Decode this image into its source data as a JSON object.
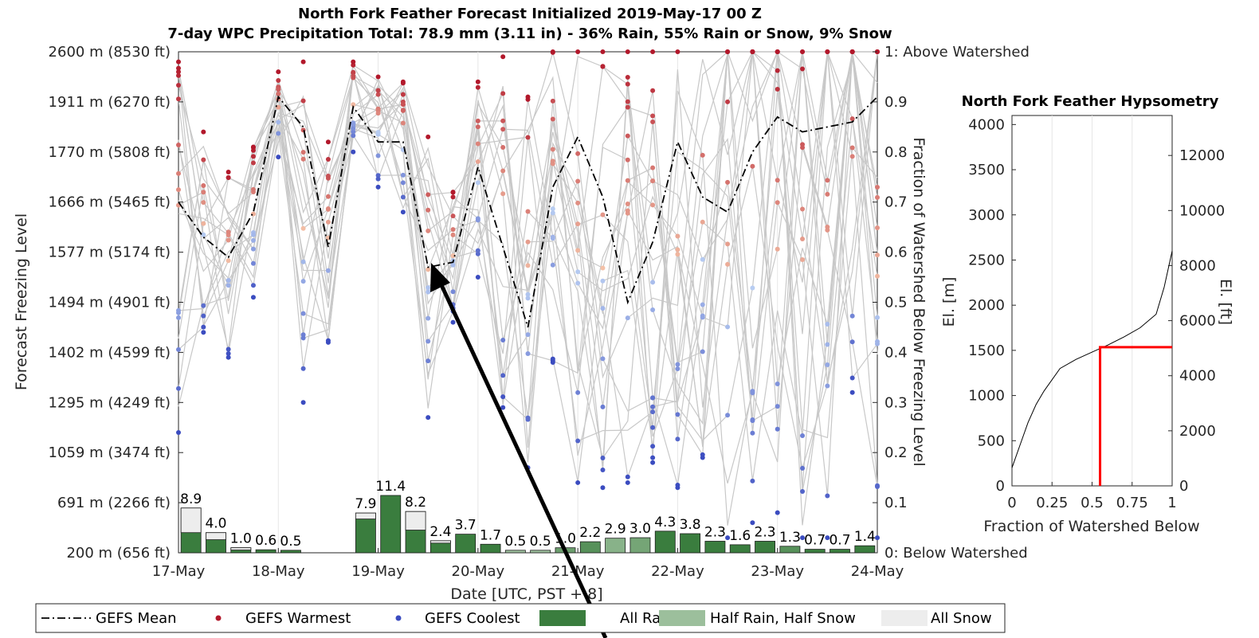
{
  "chart_data": [
    {
      "type": "line",
      "title": "North Fork Feather Forecast Initialized 2019-May-17 00 Z",
      "subtitle": "7-day WPC Precipitation Total: 78.9 mm (3.11 in) - 36% Rain, 55% Rain or Snow, 9% Snow",
      "xlabel": "Date [UTC, PST + 8]",
      "ylabel": "Forecast Freezing Level",
      "ylabel_right": "Fraction of Watershed Below Freezing Level",
      "x_ticks": [
        "17-May",
        "18-May",
        "19-May",
        "20-May",
        "21-May",
        "22-May",
        "23-May",
        "24-May"
      ],
      "y_ticks_left": [
        "200 m (656 ft)",
        "691 m (2266 ft)",
        "1059 m (3474 ft)",
        "1295 m (4249 ft)",
        "1402 m (4599 ft)",
        "1494 m (4901 ft)",
        "1577 m (5174 ft)",
        "1666 m (5465 ft)",
        "1770 m (5808 ft)",
        "1911 m (6270 ft)",
        "2600 m (8530 ft)"
      ],
      "y_ticks_right": [
        "0: Below Watershed",
        "0.1",
        "0.2",
        "0.3",
        "0.4",
        "0.5",
        "0.6",
        "0.7",
        "0.8",
        "0.9",
        "1: Above Watershed"
      ],
      "ylim_fraction": [
        0,
        1
      ],
      "grid": "x",
      "series": [
        {
          "name": "GEFS Mean",
          "style": "dash-dot",
          "color": "#000000",
          "x": [
            0,
            0.25,
            0.5,
            0.75,
            1.0,
            1.25,
            1.5,
            1.75,
            2.0,
            2.25,
            2.5,
            2.75,
            3.0,
            3.25,
            3.5,
            3.75,
            4.0,
            4.25,
            4.5,
            4.75,
            5.0,
            5.25,
            5.5,
            5.75,
            6.0,
            6.25,
            6.5,
            6.75,
            7.0
          ],
          "y": [
            0.7,
            0.63,
            0.59,
            0.68,
            0.91,
            0.85,
            0.61,
            0.89,
            0.82,
            0.82,
            0.57,
            0.58,
            0.77,
            0.61,
            0.45,
            0.73,
            0.83,
            0.71,
            0.5,
            0.62,
            0.82,
            0.71,
            0.68,
            0.8,
            0.87,
            0.84,
            0.85,
            0.86,
            0.91
          ]
        },
        {
          "name": "GEFS Warmest",
          "style": "markers",
          "color": "#b2182b",
          "x": [
            0,
            0.25,
            0.5,
            0.75,
            1.0,
            1.25,
            1.5,
            1.75,
            2.0,
            2.25,
            2.5,
            2.75,
            3.0,
            3.25,
            3.5,
            3.75,
            4.0,
            4.25,
            4.5,
            4.75,
            5.0
          ],
          "y": [
            0.98,
            0.84,
            0.76,
            0.81,
            0.96,
            0.98,
            0.82,
            0.98,
            0.95,
            0.94,
            0.83,
            0.72,
            0.94,
            0.99,
            0.91,
            1.0,
            1.0,
            1.0,
            1.0,
            1.0,
            1.0
          ]
        },
        {
          "name": "GEFS Coolest",
          "style": "markers",
          "color": "#3b4cc0",
          "x": [
            0,
            0.25,
            0.5,
            0.75,
            1.0,
            1.25,
            1.5,
            1.75,
            2.0,
            2.25,
            2.5,
            2.75,
            3.0,
            3.25,
            3.5,
            3.75,
            4.0,
            4.25,
            4.5,
            4.75,
            5.0,
            5.25,
            5.5,
            5.75,
            6.0,
            6.25,
            6.5,
            6.75,
            7.0
          ],
          "y": [
            0.24,
            0.44,
            0.39,
            0.51,
            0.79,
            0.3,
            0.42,
            0.8,
            0.73,
            0.68,
            0.27,
            0.46,
            0.55,
            0.29,
            0.17,
            0.38,
            0.14,
            0.13,
            0.14,
            0.18,
            0.13,
            0.19,
            0.03,
            0.06,
            0.08,
            0.03,
            0.03,
            0.32,
            0.03
          ]
        }
      ]
    },
    {
      "type": "bar",
      "name": "WPC Precipitation (mm)",
      "categories": [
        "17-May 00Z",
        "17-May 06Z",
        "17-May 12Z",
        "17-May 18Z",
        "18-May 00Z",
        "18-May 06Z",
        "18-May 12Z",
        "18-May 18Z",
        "19-May 00Z",
        "19-May 06Z",
        "19-May 12Z",
        "19-May 18Z",
        "20-May 00Z",
        "20-May 06Z",
        "20-May 12Z",
        "20-May 18Z",
        "21-May 00Z",
        "21-May 06Z",
        "21-May 12Z",
        "21-May 18Z",
        "22-May 00Z",
        "22-May 06Z",
        "22-May 12Z",
        "22-May 18Z",
        "23-May 00Z",
        "23-May 06Z",
        "23-May 12Z",
        "23-May 18Z"
      ],
      "values": [
        8.9,
        4.0,
        1.0,
        0.6,
        0.5,
        0.0,
        0.0,
        7.9,
        11.4,
        8.2,
        2.4,
        3.7,
        1.7,
        0.5,
        0.5,
        1.0,
        2.2,
        2.9,
        3.0,
        4.3,
        3.8,
        2.3,
        1.6,
        2.3,
        1.3,
        0.7,
        0.7,
        1.4
      ],
      "labels": [
        "8.9",
        "4.0",
        "1.0",
        "0.6",
        "0.5",
        "",
        "",
        "7.9",
        "11.4",
        "8.2",
        "2.4",
        "3.7",
        "1.7",
        "0.5",
        "0.5",
        "1.0",
        "2.2",
        "2.9",
        "3.0",
        "4.3",
        "3.8",
        "2.3",
        "1.6",
        "2.3",
        "1.3",
        "0.7",
        "0.7",
        "1.4"
      ],
      "snow_fraction": [
        0.55,
        0.35,
        0.45,
        0.0,
        0.0,
        0.0,
        0.0,
        0.15,
        0.0,
        0.45,
        0.2,
        0.0,
        0.0,
        0.0,
        0.0,
        0.0,
        0.0,
        0.0,
        0.0,
        0.0,
        0.0,
        0.0,
        0.0,
        0.0,
        0.0,
        0.0,
        0.0,
        0.0
      ],
      "mixed_fraction": [
        0.0,
        0.0,
        0.0,
        0.0,
        0.0,
        0.0,
        0.0,
        0.0,
        0.0,
        0.0,
        0.0,
        0.0,
        0.0,
        1.0,
        1.0,
        0.5,
        0.3,
        0.8,
        0.6,
        0.0,
        0.0,
        0.0,
        0.0,
        0.0,
        0.3,
        0.0,
        0.0,
        0.0
      ]
    },
    {
      "type": "line",
      "title": "North Fork Feather Hypsometry",
      "xlabel": "Fraction of Watershed Below",
      "ylabel": "El. [m]",
      "ylabel_right": "El. [ft]",
      "xlim": [
        0,
        1
      ],
      "ylim": [
        0,
        4100
      ],
      "x_ticks": [
        "0",
        "0.25",
        "0.5",
        "0.75",
        "1"
      ],
      "y_ticks": [
        "0",
        "500",
        "1000",
        "1500",
        "2000",
        "2500",
        "3000",
        "3500",
        "4000"
      ],
      "y_ticks_right": [
        "0",
        "2000",
        "4000",
        "6000",
        "8000",
        "10000",
        "12000"
      ],
      "grid": "x",
      "series": [
        {
          "x": [
            0,
            0.05,
            0.1,
            0.15,
            0.2,
            0.3,
            0.4,
            0.5,
            0.55,
            0.6,
            0.7,
            0.8,
            0.9,
            0.95,
            1.0
          ],
          "y": [
            200,
            450,
            700,
            900,
            1050,
            1300,
            1400,
            1480,
            1520,
            1560,
            1650,
            1750,
            1900,
            2200,
            2600
          ]
        }
      ],
      "highlight": {
        "x": 0.55,
        "y": 1535,
        "color": "#ff0000"
      }
    }
  ],
  "legend": {
    "items": [
      {
        "label": "GEFS Mean",
        "symbol": "dash-dot",
        "color": "#000000"
      },
      {
        "label": "GEFS Warmest",
        "symbol": "dot",
        "color": "#b2182b"
      },
      {
        "label": "GEFS Coolest",
        "symbol": "dot",
        "color": "#3b4cc0"
      },
      {
        "label": "All Rain",
        "symbol": "box",
        "color": "#3a7d3e"
      },
      {
        "label": "Half Rain, Half Snow",
        "symbol": "box",
        "color": "#9cbf9c"
      },
      {
        "label": "All Snow",
        "symbol": "box",
        "color": "#ededed"
      }
    ]
  }
}
